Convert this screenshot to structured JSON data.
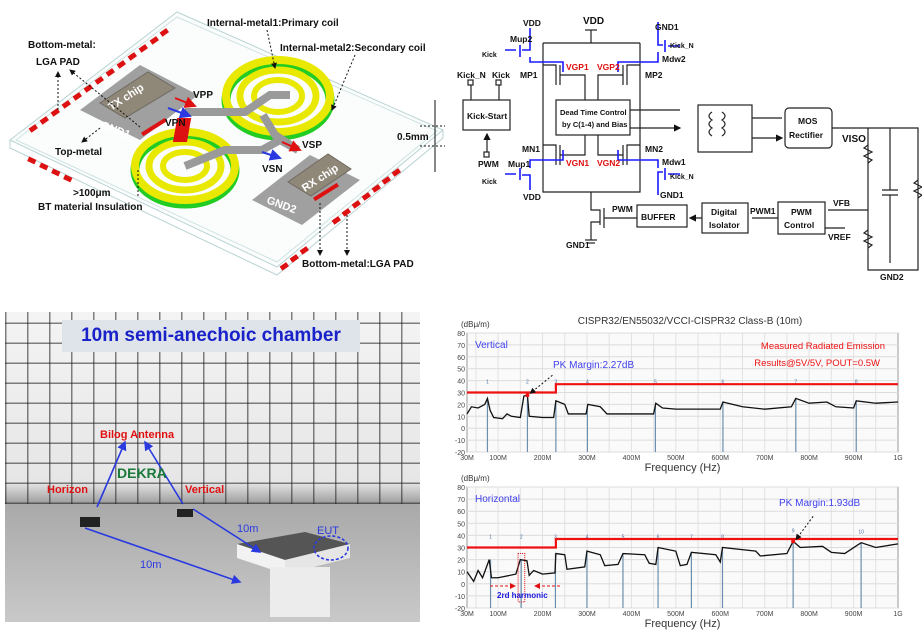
{
  "package": {
    "labels": {
      "primary_coil": "Internal-metal1:Primary coil",
      "secondary_coil": "Internal-metal2:Secondary coil",
      "bottom_metal_left_1": "Bottom-metal:",
      "bottom_metal_left_2": "LGA PAD",
      "bottom_metal_right": "Bottom-metal:LGA PAD",
      "top_metal": "Top-metal",
      "insulation_1": ">100μm",
      "insulation_2": "BT material Insulation",
      "thickness": "0.5mm",
      "tx_chip": "TX chip",
      "rx_chip": "RX chip",
      "gnd1": "GND1",
      "gnd2": "GND2",
      "vpp": "VPP",
      "vpn": "VPN",
      "vsp": "VSP",
      "vsn": "VSN"
    },
    "colors": {
      "coil_primary": "#e8e800",
      "coil_secondary": "#22cc22",
      "pad": "#dd1111",
      "chip": "#8f8778"
    }
  },
  "schematic": {
    "labels": {
      "vdd_top": "VDD",
      "vdd_mup2": "VDD",
      "vdd_mup1": "VDD",
      "gnd1_top": "GND1",
      "gnd1_mdw1": "GND1",
      "gnd1_bottom": "GND1",
      "gnd2": "GND2",
      "mup2": "Mup2",
      "mup1": "Mup1",
      "mdw2": "Mdw2",
      "mdw1": "Mdw1",
      "mp1": "MP1",
      "mp2": "MP2",
      "mn1": "MN1",
      "mn2": "MN2",
      "vgp1": "VGP1",
      "vgp2": "VGP2",
      "vgn1": "VGN1",
      "vgn2": "VGN2",
      "kick_mup2": "Kick",
      "kick_mup1": "Kick",
      "kickn_mdw2": "Kick_N",
      "kickn_mdw1": "Kick_N",
      "kick_start": "Kick-Start",
      "kick_start_in_n": "Kick_N",
      "kick_start_in": "Kick",
      "pwm_in": "PWM",
      "dead_time_1": "Dead Time Control",
      "dead_time_2": "by C(1-4) and Bias",
      "mos_1": "MOS",
      "mos_2": "Rectifier",
      "viso": "VISO",
      "buffer": "BUFFER",
      "pwm_buf": "PWM",
      "iso_1": "Digital",
      "iso_2": "Isolator",
      "pwm1": "PWM1",
      "pwmc_1": "PWM",
      "pwmc_2": "Control",
      "vfb": "VFB",
      "vref": "VREF"
    },
    "colors": {
      "gate_drive": "#1a1aff",
      "gate_label": "#e01010"
    }
  },
  "photo": {
    "title": "10m semi-anechoic chamber",
    "antenna": "Bilog Antenna",
    "horizon": "Horizon",
    "vertical": "Vertical",
    "dist_1": "10m",
    "dist_2": "10m",
    "eut": "EUT",
    "logo_text": "DEKRA"
  },
  "chart_data": [
    {
      "type": "line",
      "title": "CISPR32/EN55032/VCCI-CISPR32 Class-B (10m)",
      "ylabel": "(dBμ/m)",
      "xlabel": "Frequency (Hz)",
      "polarization": "Vertical",
      "note_1": "Measured Radiated Emission",
      "note_2": "Results@5V/5V, POUT=0.5W",
      "margin_label": "PK Margin:2.27dB",
      "ylim": [
        -20,
        80
      ],
      "yticks": [
        80,
        70,
        60,
        50,
        40,
        30,
        20,
        10,
        0,
        -10,
        -20
      ],
      "xlim_mhz": [
        30,
        1000
      ],
      "xticks": [
        {
          "v": 30,
          "l": "30M"
        },
        {
          "v": 100,
          "l": "100M"
        },
        {
          "v": 200,
          "l": "200M"
        },
        {
          "v": 300,
          "l": "300M"
        },
        {
          "v": 400,
          "l": "400M"
        },
        {
          "v": 500,
          "l": "500M"
        },
        {
          "v": 600,
          "l": "600M"
        },
        {
          "v": 700,
          "l": "700M"
        },
        {
          "v": 800,
          "l": "800M"
        },
        {
          "v": 900,
          "l": "900M"
        },
        {
          "v": 1000,
          "l": "1G"
        }
      ],
      "grid": true,
      "limit_line": [
        [
          30,
          30
        ],
        [
          230,
          30
        ],
        [
          230,
          37
        ],
        [
          1000,
          37
        ]
      ],
      "trace": [
        [
          30,
          12
        ],
        [
          40,
          18
        ],
        [
          55,
          17
        ],
        [
          70,
          20
        ],
        [
          76,
          25
        ],
        [
          82,
          15
        ],
        [
          90,
          9
        ],
        [
          110,
          8
        ],
        [
          120,
          12
        ],
        [
          130,
          10
        ],
        [
          150,
          9
        ],
        [
          158,
          27
        ],
        [
          166,
          27.7
        ],
        [
          170,
          10
        ],
        [
          200,
          9
        ],
        [
          225,
          9
        ],
        [
          230,
          23
        ],
        [
          250,
          20
        ],
        [
          258,
          12
        ],
        [
          298,
          12
        ],
        [
          302,
          20
        ],
        [
          330,
          18
        ],
        [
          345,
          12
        ],
        [
          400,
          12
        ],
        [
          450,
          12
        ],
        [
          455,
          21
        ],
        [
          470,
          17
        ],
        [
          500,
          16
        ],
        [
          560,
          16
        ],
        [
          600,
          16
        ],
        [
          606,
          22
        ],
        [
          650,
          18
        ],
        [
          700,
          16
        ],
        [
          760,
          18
        ],
        [
          770,
          25
        ],
        [
          800,
          21
        ],
        [
          840,
          22
        ],
        [
          860,
          18
        ],
        [
          900,
          17
        ],
        [
          906,
          23
        ],
        [
          950,
          21
        ],
        [
          1000,
          22
        ]
      ],
      "markers": [
        {
          "n": "1",
          "f": 76,
          "v": 25
        },
        {
          "n": "2",
          "f": 166,
          "v": 27.7
        },
        {
          "n": "3",
          "f": 230,
          "v": 23
        },
        {
          "n": "4",
          "f": 301,
          "v": 20
        },
        {
          "n": "5",
          "f": 454,
          "v": 21
        },
        {
          "n": "6",
          "f": 606,
          "v": 22
        },
        {
          "n": "7",
          "f": 770,
          "v": 25
        },
        {
          "n": "8",
          "f": 906,
          "v": 23
        }
      ],
      "peak_marker": 2,
      "colors": {
        "limit": "#ee1111",
        "trace": "#111111",
        "marker": "#6c8fb0",
        "label": "#4040ee",
        "note": "#ee1111"
      }
    },
    {
      "type": "line",
      "ylabel": "(dBμ/m)",
      "xlabel": "Frequency (Hz)",
      "polarization": "Horizontal",
      "margin_label": "PK Margin:1.93dB",
      "harmonic_label": "2rd harmonic",
      "ylim": [
        -20,
        80
      ],
      "yticks": [
        80,
        70,
        60,
        50,
        40,
        30,
        20,
        10,
        0,
        -10,
        -20
      ],
      "xlim_mhz": [
        30,
        1000
      ],
      "xticks": [
        {
          "v": 30,
          "l": "30M"
        },
        {
          "v": 100,
          "l": "100M"
        },
        {
          "v": 200,
          "l": "200M"
        },
        {
          "v": 300,
          "l": "300M"
        },
        {
          "v": 400,
          "l": "400M"
        },
        {
          "v": 500,
          "l": "500M"
        },
        {
          "v": 600,
          "l": "600M"
        },
        {
          "v": 700,
          "l": "700M"
        },
        {
          "v": 800,
          "l": "800M"
        },
        {
          "v": 900,
          "l": "900M"
        },
        {
          "v": 1000,
          "l": "1G"
        }
      ],
      "grid": true,
      "limit_line": [
        [
          30,
          30
        ],
        [
          230,
          30
        ],
        [
          230,
          37
        ],
        [
          1000,
          37
        ]
      ],
      "trace": [
        [
          30,
          10
        ],
        [
          45,
          2
        ],
        [
          55,
          11
        ],
        [
          65,
          5
        ],
        [
          80,
          20
        ],
        [
          85,
          5
        ],
        [
          100,
          5
        ],
        [
          140,
          8
        ],
        [
          150,
          20
        ],
        [
          165,
          19
        ],
        [
          170,
          7
        ],
        [
          180,
          11
        ],
        [
          200,
          8
        ],
        [
          228,
          9
        ],
        [
          230,
          25
        ],
        [
          250,
          24
        ],
        [
          255,
          12
        ],
        [
          295,
          14
        ],
        [
          300,
          27
        ],
        [
          330,
          24
        ],
        [
          340,
          15
        ],
        [
          370,
          16
        ],
        [
          381,
          25
        ],
        [
          430,
          24
        ],
        [
          440,
          17
        ],
        [
          455,
          16
        ],
        [
          460,
          30
        ],
        [
          500,
          27
        ],
        [
          510,
          15
        ],
        [
          525,
          16
        ],
        [
          535,
          26
        ],
        [
          590,
          24
        ],
        [
          600,
          18
        ],
        [
          605,
          30
        ],
        [
          680,
          27
        ],
        [
          690,
          23
        ],
        [
          750,
          25
        ],
        [
          764,
          35.1
        ],
        [
          780,
          30
        ],
        [
          830,
          31
        ],
        [
          850,
          26
        ],
        [
          880,
          25
        ],
        [
          917,
          34
        ],
        [
          950,
          30
        ],
        [
          1000,
          33
        ]
      ],
      "markers": [
        {
          "n": "1",
          "f": 83,
          "v": 20
        },
        {
          "n": "2",
          "f": 152,
          "v": 20
        },
        {
          "n": "3",
          "f": 229,
          "v": 25
        },
        {
          "n": "4",
          "f": 300,
          "v": 27
        },
        {
          "n": "5",
          "f": 381,
          "v": 25
        },
        {
          "n": "6",
          "f": 460,
          "v": 30
        },
        {
          "n": "7",
          "f": 535,
          "v": 26
        },
        {
          "n": "8",
          "f": 605,
          "v": 30
        },
        {
          "n": "9",
          "f": 764,
          "v": 35.1
        },
        {
          "n": "10",
          "f": 917,
          "v": 34
        }
      ],
      "peak_marker": 9,
      "colors": {
        "limit": "#ee1111",
        "trace": "#111111",
        "marker": "#6c8fb0",
        "label": "#4040ee",
        "harmonic": "#1a1ae0"
      }
    }
  ]
}
